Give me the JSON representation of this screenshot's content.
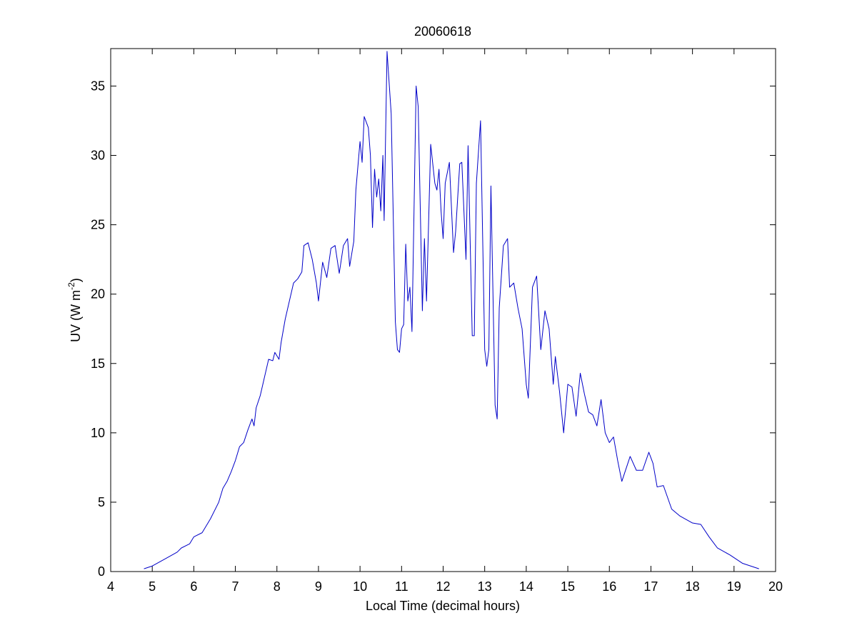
{
  "chart_data": {
    "type": "line",
    "title": "20060618",
    "xlabel": "Local Time (decimal hours)",
    "ylabel": {
      "text": "UV (W m",
      "superscript": "-2",
      "suffix": ")"
    },
    "xlim": [
      4,
      20
    ],
    "ylim": [
      0,
      37.7
    ],
    "xticks": [
      4,
      5,
      6,
      7,
      8,
      9,
      10,
      11,
      12,
      13,
      14,
      15,
      16,
      17,
      18,
      19,
      20
    ],
    "yticks": [
      0,
      5,
      10,
      15,
      20,
      25,
      30,
      35
    ],
    "x": [
      4.8,
      5.0,
      5.3,
      5.6,
      5.7,
      5.9,
      6.0,
      6.2,
      6.4,
      6.6,
      6.7,
      6.8,
      6.9,
      7.0,
      7.1,
      7.2,
      7.3,
      7.4,
      7.45,
      7.5,
      7.6,
      7.7,
      7.8,
      7.9,
      7.95,
      8.05,
      8.1,
      8.2,
      8.3,
      8.4,
      8.5,
      8.6,
      8.65,
      8.75,
      8.85,
      8.95,
      9.0,
      9.1,
      9.2,
      9.3,
      9.4,
      9.5,
      9.6,
      9.7,
      9.75,
      9.85,
      9.9,
      10.0,
      10.05,
      10.1,
      10.2,
      10.25,
      10.3,
      10.35,
      10.4,
      10.45,
      10.5,
      10.55,
      10.58,
      10.65,
      10.75,
      10.85,
      10.9,
      10.95,
      11.0,
      11.05,
      11.1,
      11.15,
      11.2,
      11.25,
      11.35,
      11.4,
      11.5,
      11.55,
      11.6,
      11.7,
      11.8,
      11.85,
      11.9,
      11.95,
      12.0,
      12.05,
      12.15,
      12.25,
      12.3,
      12.4,
      12.45,
      12.5,
      12.55,
      12.6,
      12.7,
      12.75,
      12.8,
      12.9,
      13.0,
      13.05,
      13.1,
      13.15,
      13.25,
      13.3,
      13.35,
      13.45,
      13.55,
      13.6,
      13.7,
      13.8,
      13.9,
      14.0,
      14.05,
      14.15,
      14.25,
      14.35,
      14.45,
      14.55,
      14.65,
      14.7,
      14.8,
      14.9,
      15.0,
      15.1,
      15.2,
      15.3,
      15.4,
      15.5,
      15.6,
      15.7,
      15.8,
      15.9,
      16.0,
      16.1,
      16.2,
      16.3,
      16.5,
      16.65,
      16.8,
      16.95,
      17.05,
      17.15,
      17.3,
      17.5,
      17.7,
      18.0,
      18.2,
      18.4,
      18.6,
      18.9,
      19.2,
      19.6
    ],
    "series": [
      {
        "color": "#0000c8",
        "values": [
          0.2,
          0.4,
          0.9,
          1.4,
          1.7,
          2.0,
          2.5,
          2.8,
          3.8,
          5.0,
          6.0,
          6.5,
          7.2,
          8.0,
          9.0,
          9.3,
          10.2,
          11.0,
          10.5,
          11.8,
          12.7,
          14.0,
          15.3,
          15.2,
          15.8,
          15.3,
          16.5,
          18.2,
          19.5,
          20.8,
          21.1,
          21.6,
          23.5,
          23.7,
          22.5,
          20.8,
          19.5,
          22.3,
          21.2,
          23.3,
          23.5,
          21.5,
          23.5,
          24.0,
          22.0,
          23.8,
          27.5,
          31.0,
          29.5,
          32.8,
          32.0,
          30.0,
          24.8,
          29.0,
          27.0,
          28.3,
          26.0,
          30.0,
          25.3,
          37.5,
          33.0,
          18.0,
          16.0,
          15.8,
          17.5,
          17.8,
          23.6,
          19.5,
          20.5,
          17.3,
          35.0,
          33.5,
          18.8,
          24.0,
          19.5,
          30.8,
          28.0,
          27.5,
          29.0,
          26.0,
          24.0,
          28.0,
          29.5,
          23.0,
          24.5,
          29.4,
          29.5,
          26.0,
          22.5,
          30.7,
          17.0,
          17.0,
          28.0,
          32.5,
          16.0,
          14.8,
          16.0,
          27.8,
          12.0,
          11.0,
          19.0,
          23.5,
          24.0,
          20.5,
          20.8,
          19.0,
          17.5,
          13.5,
          12.5,
          20.5,
          21.3,
          16.0,
          18.8,
          17.5,
          13.5,
          15.5,
          13.0,
          10.0,
          13.5,
          13.3,
          11.2,
          14.3,
          12.8,
          11.5,
          11.3,
          10.5,
          12.4,
          10.0,
          9.3,
          9.7,
          8.0,
          6.5,
          8.3,
          7.3,
          7.3,
          8.6,
          7.8,
          6.1,
          6.2,
          4.5,
          4.0,
          3.5,
          3.4,
          2.5,
          1.7,
          1.2,
          0.6,
          0.2
        ]
      }
    ]
  }
}
